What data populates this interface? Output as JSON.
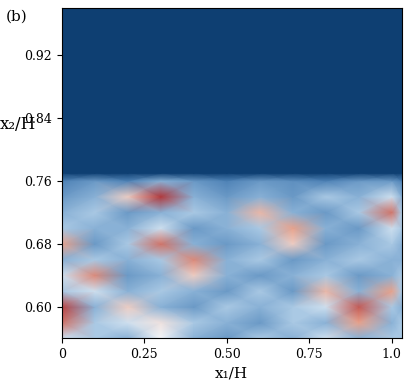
{
  "chart_data": {
    "type": "heatmap",
    "annotations": [
      "(b)"
    ],
    "x_label": "x₁/H",
    "y_label": "x₂/H",
    "xlim": [
      0,
      1.03
    ],
    "ylim": [
      0.56,
      0.98
    ],
    "xticks": [
      0,
      {
        "value": 0.25,
        "label": "0.25"
      },
      {
        "value": 0.5,
        "label": "0.50"
      },
      {
        "value": 0.75,
        "label": "0.75"
      },
      {
        "value": 1.0,
        "label": "1.0"
      }
    ],
    "yticks": [
      {
        "value": 0.6,
        "label": "0.60"
      },
      {
        "value": 0.68,
        "label": "0.68"
      },
      {
        "value": 0.76,
        "label": "0.76"
      },
      {
        "value": 0.84,
        "label": "0.84"
      },
      {
        "value": 0.92,
        "label": "0.92"
      }
    ],
    "color_range": [
      0,
      1
    ],
    "x": [
      0,
      0.1,
      0.2,
      0.3,
      0.4,
      0.5,
      0.6,
      0.7,
      0.8,
      0.9,
      1.0,
      1.03
    ],
    "y": [
      0.56,
      0.58,
      0.6,
      0.62,
      0.64,
      0.66,
      0.68,
      0.7,
      0.72,
      0.74,
      0.76,
      0.77,
      0.98
    ],
    "cells": [
      [
        0.45,
        0.4,
        0.35,
        0.5,
        0.35,
        0.3,
        0.4,
        0.35,
        0.45,
        0.35,
        0.4,
        0.4
      ],
      [
        0.8,
        0.4,
        0.45,
        0.55,
        0.4,
        0.35,
        0.3,
        0.4,
        0.35,
        0.7,
        0.35,
        0.4
      ],
      [
        0.9,
        0.35,
        0.6,
        0.35,
        0.3,
        0.4,
        0.35,
        0.4,
        0.45,
        0.85,
        0.4,
        0.35
      ],
      [
        0.4,
        0.45,
        0.35,
        0.4,
        0.35,
        0.3,
        0.4,
        0.3,
        0.65,
        0.35,
        0.7,
        0.4
      ],
      [
        0.45,
        0.75,
        0.3,
        0.35,
        0.6,
        0.35,
        0.3,
        0.35,
        0.4,
        0.3,
        0.35,
        0.4
      ],
      [
        0.35,
        0.4,
        0.35,
        0.4,
        0.75,
        0.35,
        0.4,
        0.3,
        0.35,
        0.4,
        0.35,
        0.35
      ],
      [
        0.7,
        0.3,
        0.4,
        0.8,
        0.35,
        0.3,
        0.35,
        0.6,
        0.3,
        0.35,
        0.4,
        0.35
      ],
      [
        0.4,
        0.35,
        0.35,
        0.45,
        0.3,
        0.35,
        0.4,
        0.7,
        0.35,
        0.3,
        0.45,
        0.4
      ],
      [
        0.35,
        0.4,
        0.3,
        0.35,
        0.4,
        0.35,
        0.65,
        0.35,
        0.3,
        0.4,
        0.8,
        0.4
      ],
      [
        0.3,
        0.35,
        0.6,
        0.92,
        0.35,
        0.3,
        0.35,
        0.3,
        0.4,
        0.35,
        0.45,
        0.35
      ],
      [
        0.25,
        0.3,
        0.25,
        0.35,
        0.3,
        0.25,
        0.3,
        0.28,
        0.25,
        0.3,
        0.3,
        0.25
      ],
      [
        0.02,
        0.02,
        0.02,
        0.02,
        0.02,
        0.02,
        0.02,
        0.02,
        0.02,
        0.02,
        0.02,
        0.02
      ],
      [
        0.02,
        0.02,
        0.02,
        0.02,
        0.02,
        0.02,
        0.02,
        0.02,
        0.02,
        0.02,
        0.02,
        0.02
      ]
    ]
  }
}
